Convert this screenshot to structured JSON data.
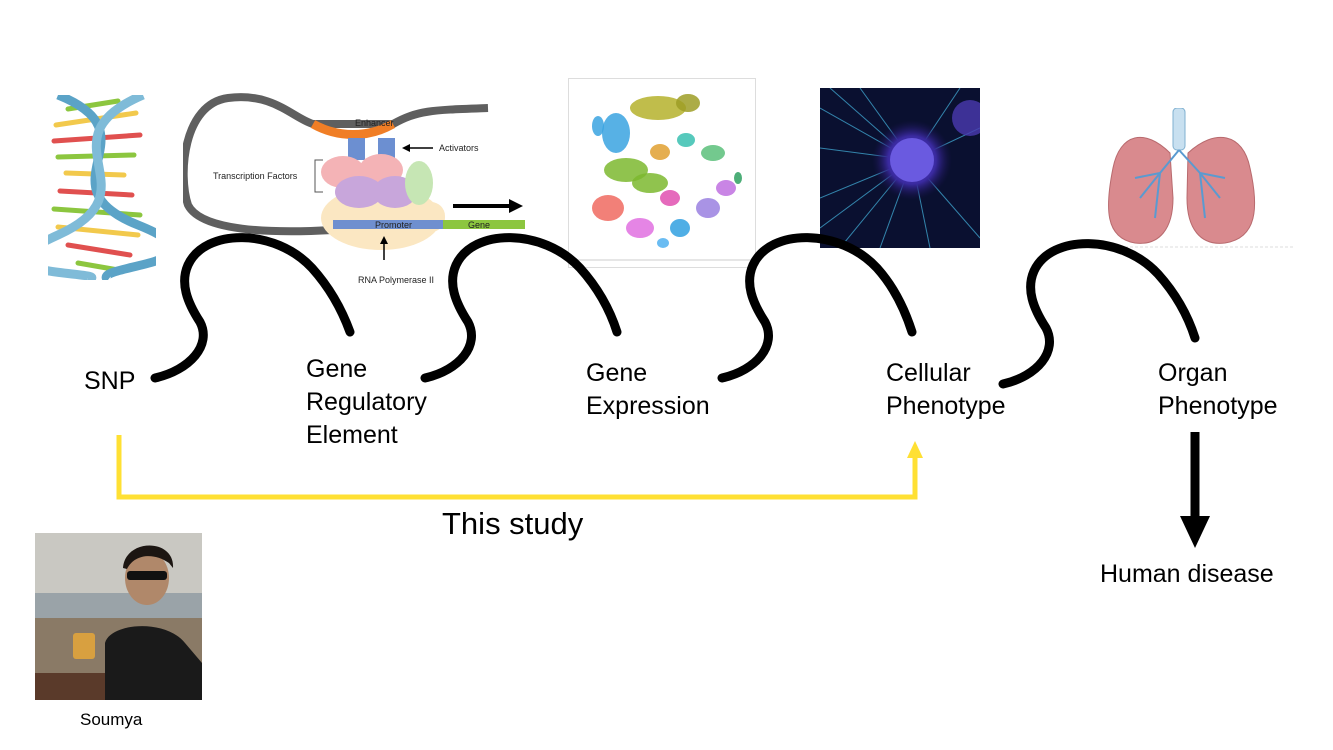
{
  "stages": [
    {
      "label": "SNP"
    },
    {
      "label": "Gene\nRegulatory\nElement"
    },
    {
      "label": "Gene\nExpression"
    },
    {
      "label": "Cellular\nPhenotype"
    },
    {
      "label": "Organ\nPhenotype"
    }
  ],
  "outcome": "Human disease",
  "study_label": "This study",
  "person_caption": "Soumya",
  "regulation_diagram": {
    "enhancer": "Enhancer",
    "activators": "Activators",
    "transcription_factors": "Transcription Factors",
    "promoter": "Promoter",
    "gene": "Gene",
    "rna_polymerase": "RNA Polymerase II"
  },
  "colors": {
    "study_arrow": "#FFE033",
    "connector": "#000000",
    "enhancer": "#F07E26",
    "promoter_bar": "#6F8FCF",
    "gene_bar": "#8CC63F",
    "activator_blocks": "#6C8FD1",
    "cell_background": "#0A1030",
    "lung": "#D98A8E"
  }
}
